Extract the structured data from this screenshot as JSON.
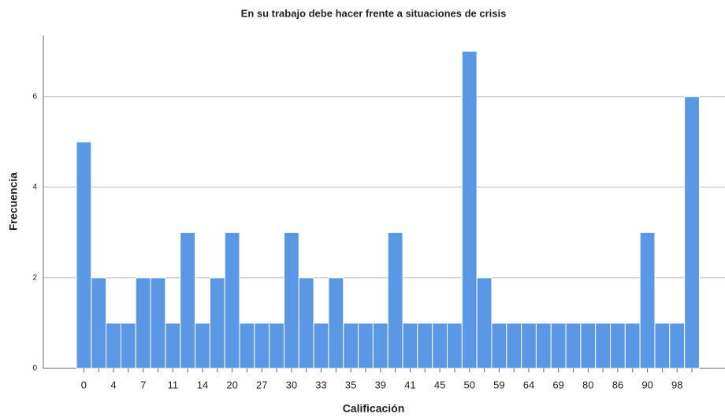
{
  "chart_data": {
    "type": "bar",
    "title": "En su trabajo debe hacer frente a situaciones de crisis",
    "x_label": "Calificación",
    "y_label": "Frecuencia",
    "categories": [
      "0",
      null,
      "4",
      null,
      "7",
      null,
      "11",
      null,
      "14",
      null,
      "20",
      null,
      "27",
      null,
      "30",
      null,
      "33",
      null,
      "35",
      null,
      "39",
      null,
      "41",
      null,
      "45",
      null,
      "50",
      null,
      "59",
      null,
      "64",
      null,
      "69",
      null,
      "80",
      null,
      "86",
      null,
      "90",
      null,
      "98",
      null
    ],
    "values": [
      5,
      2,
      1,
      1,
      2,
      2,
      1,
      3,
      1,
      2,
      3,
      1,
      1,
      1,
      3,
      2,
      1,
      2,
      1,
      1,
      1,
      3,
      1,
      1,
      1,
      1,
      7,
      2,
      1,
      1,
      1,
      1,
      1,
      1,
      1,
      1,
      1,
      1,
      3,
      1,
      1,
      6
    ],
    "color": "#5a98e6",
    "ylim": [
      0,
      7.35
    ],
    "yticks": [
      0,
      2,
      4,
      6
    ],
    "grid": true
  }
}
